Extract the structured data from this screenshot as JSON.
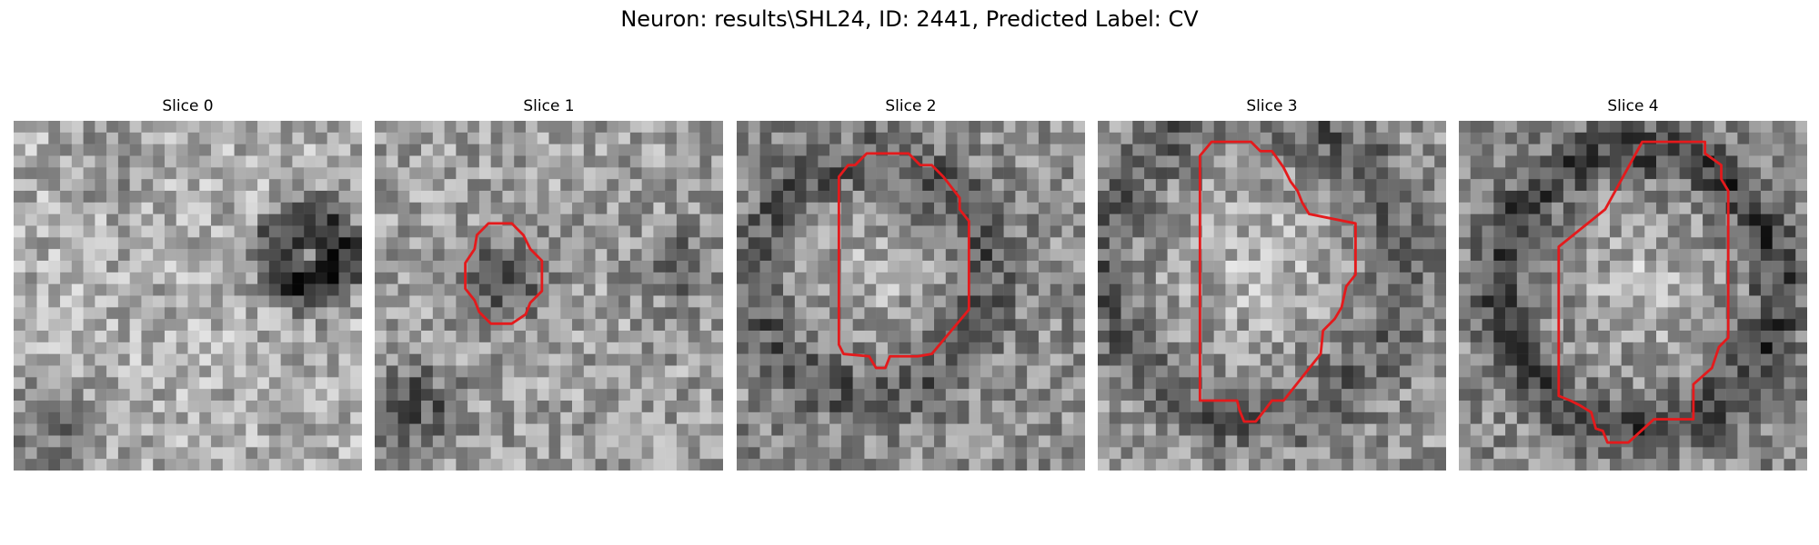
{
  "figure": {
    "title": "Neuron: results\\SHL24, ID: 2441, Predicted Label: CV",
    "contour_color": "#e41a1c",
    "image_colormap": "gray",
    "grid_size": [
      30,
      30
    ],
    "panels": [
      {
        "title": "Slice 0",
        "seed": 11,
        "has_contour": false
      },
      {
        "title": "Slice 1",
        "seed": 23,
        "has_contour": true
      },
      {
        "title": "Slice 2",
        "seed": 37,
        "has_contour": true
      },
      {
        "title": "Slice 3",
        "seed": 41,
        "has_contour": true
      },
      {
        "title": "Slice 4",
        "seed": 53,
        "has_contour": true
      }
    ]
  }
}
